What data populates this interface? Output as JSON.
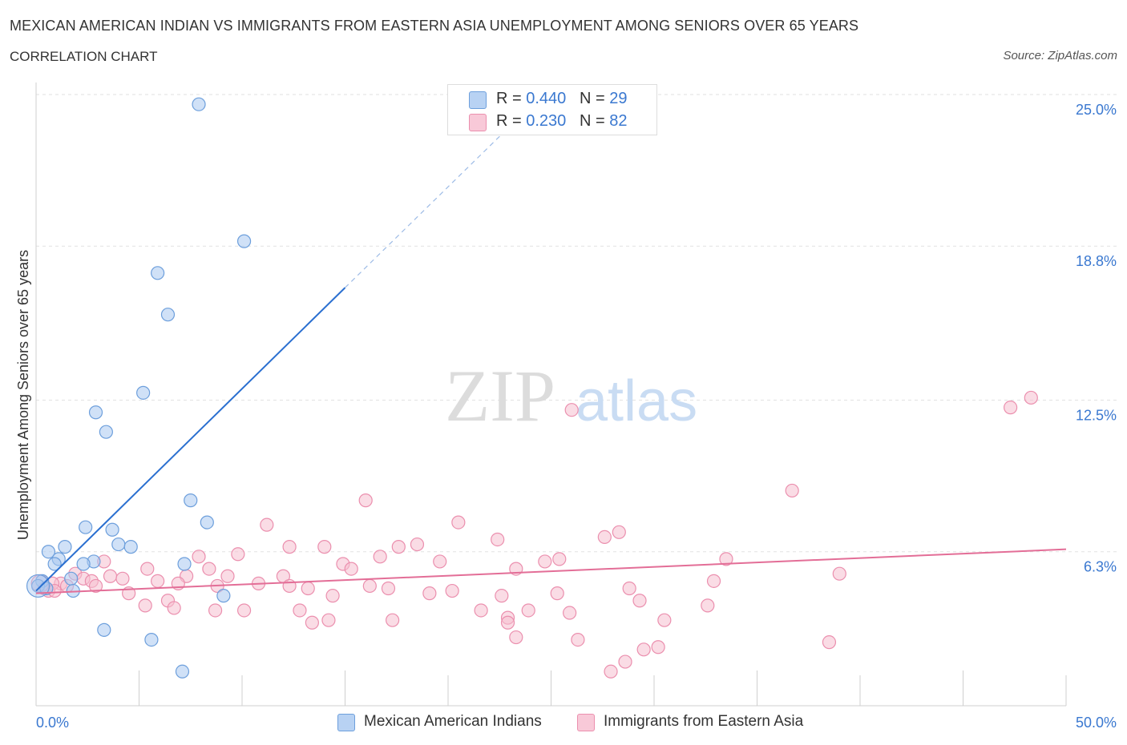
{
  "header": {
    "title": "MEXICAN AMERICAN INDIAN VS IMMIGRANTS FROM EASTERN ASIA UNEMPLOYMENT AMONG SENIORS OVER 65 YEARS",
    "subtitle": "CORRELATION CHART",
    "source": "Source: ZipAtlas.com"
  },
  "watermark": {
    "zip": "ZIP",
    "atlas": "atlas"
  },
  "legend_top": {
    "rows": [
      {
        "r_label": "R =",
        "r_value": "0.440",
        "n_label": "N =",
        "n_value": "29"
      },
      {
        "r_label": "R =",
        "r_value": "0.230",
        "n_label": "N =",
        "n_value": "82"
      }
    ]
  },
  "legend_bottom": {
    "items": [
      {
        "label": "Mexican American Indians"
      },
      {
        "label": "Immigrants from Eastern Asia"
      }
    ]
  },
  "colors": {
    "blue_fill": "#a9c8f0",
    "blue_stroke": "#6d9fdc",
    "blue_line": "#2a6fd0",
    "pink_fill": "#f6bfd0",
    "pink_stroke": "#eb8fae",
    "pink_line": "#e36e97",
    "axis_label": "#3a78d0",
    "grid": "#e2e2e2"
  },
  "chart_data": {
    "type": "scatter",
    "title": "MEXICAN AMERICAN INDIAN VS IMMIGRANTS FROM EASTERN ASIA UNEMPLOYMENT AMONG SENIORS OVER 65 YEARS",
    "xlabel": "",
    "ylabel": "Unemployment Among Seniors over 65 years",
    "xlim": [
      0,
      50
    ],
    "ylim": [
      0,
      25
    ],
    "x_tick_labels": [
      "0.0%",
      "50.0%"
    ],
    "y_ticks": [
      6.3,
      12.5,
      18.8,
      25.0
    ],
    "y_tick_labels": [
      "6.3%",
      "12.5%",
      "18.8%",
      "25.0%"
    ],
    "grid": true,
    "series": [
      {
        "name": "Mexican American Indians",
        "R": 0.44,
        "N": 29,
        "trend": {
          "x": [
            0,
            15
          ],
          "y": [
            4.7,
            17.1
          ],
          "dashed_to": [
            23,
            23.7
          ]
        },
        "points": [
          {
            "x": 7.9,
            "y": 24.6
          },
          {
            "x": 10.1,
            "y": 19.0
          },
          {
            "x": 5.9,
            "y": 17.7
          },
          {
            "x": 6.4,
            "y": 16.0
          },
          {
            "x": 5.2,
            "y": 12.8
          },
          {
            "x": 2.9,
            "y": 12.0
          },
          {
            "x": 3.4,
            "y": 11.2
          },
          {
            "x": 7.5,
            "y": 8.4
          },
          {
            "x": 8.3,
            "y": 7.5
          },
          {
            "x": 2.4,
            "y": 7.3
          },
          {
            "x": 3.7,
            "y": 7.2
          },
          {
            "x": 4.0,
            "y": 6.6
          },
          {
            "x": 4.6,
            "y": 6.5
          },
          {
            "x": 1.4,
            "y": 6.5
          },
          {
            "x": 0.6,
            "y": 6.3
          },
          {
            "x": 1.1,
            "y": 6.0
          },
          {
            "x": 2.8,
            "y": 5.9
          },
          {
            "x": 2.3,
            "y": 5.8
          },
          {
            "x": 0.9,
            "y": 5.8
          },
          {
            "x": 7.2,
            "y": 5.8
          },
          {
            "x": 1.7,
            "y": 5.2
          },
          {
            "x": 0.3,
            "y": 5.1
          },
          {
            "x": 0.1,
            "y": 4.9
          },
          {
            "x": 0.5,
            "y": 4.8
          },
          {
            "x": 1.8,
            "y": 4.7
          },
          {
            "x": 9.1,
            "y": 4.5
          },
          {
            "x": 3.3,
            "y": 3.1
          },
          {
            "x": 5.6,
            "y": 2.7
          },
          {
            "x": 7.1,
            "y": 1.4
          }
        ]
      },
      {
        "name": "Immigrants from Eastern Asia",
        "R": 0.23,
        "N": 82,
        "trend": {
          "x": [
            0,
            50
          ],
          "y": [
            4.6,
            6.4
          ]
        },
        "points": [
          {
            "x": 48.3,
            "y": 12.6
          },
          {
            "x": 47.3,
            "y": 12.2
          },
          {
            "x": 26.0,
            "y": 12.1
          },
          {
            "x": 36.7,
            "y": 8.8
          },
          {
            "x": 16.0,
            "y": 8.4
          },
          {
            "x": 20.5,
            "y": 7.5
          },
          {
            "x": 11.2,
            "y": 7.4
          },
          {
            "x": 28.3,
            "y": 7.1
          },
          {
            "x": 27.6,
            "y": 6.9
          },
          {
            "x": 22.4,
            "y": 6.8
          },
          {
            "x": 18.5,
            "y": 6.6
          },
          {
            "x": 17.6,
            "y": 6.5
          },
          {
            "x": 12.3,
            "y": 6.5
          },
          {
            "x": 14.0,
            "y": 6.5
          },
          {
            "x": 9.8,
            "y": 6.2
          },
          {
            "x": 16.7,
            "y": 6.1
          },
          {
            "x": 7.9,
            "y": 6.1
          },
          {
            "x": 33.5,
            "y": 6.0
          },
          {
            "x": 25.4,
            "y": 6.0
          },
          {
            "x": 24.7,
            "y": 5.9
          },
          {
            "x": 19.6,
            "y": 5.9
          },
          {
            "x": 3.3,
            "y": 5.9
          },
          {
            "x": 14.9,
            "y": 5.8
          },
          {
            "x": 15.3,
            "y": 5.6
          },
          {
            "x": 23.3,
            "y": 5.6
          },
          {
            "x": 5.4,
            "y": 5.6
          },
          {
            "x": 8.4,
            "y": 5.6
          },
          {
            "x": 1.9,
            "y": 5.4
          },
          {
            "x": 3.6,
            "y": 5.3
          },
          {
            "x": 7.3,
            "y": 5.3
          },
          {
            "x": 12.0,
            "y": 5.3
          },
          {
            "x": 39.0,
            "y": 5.4
          },
          {
            "x": 9.3,
            "y": 5.3
          },
          {
            "x": 2.3,
            "y": 5.2
          },
          {
            "x": 4.2,
            "y": 5.2
          },
          {
            "x": 5.9,
            "y": 5.1
          },
          {
            "x": 32.9,
            "y": 5.1
          },
          {
            "x": 2.7,
            "y": 5.1
          },
          {
            "x": 1.2,
            "y": 5.0
          },
          {
            "x": 0.8,
            "y": 5.0
          },
          {
            "x": 10.8,
            "y": 5.0
          },
          {
            "x": 6.9,
            "y": 5.0
          },
          {
            "x": 1.5,
            "y": 4.9
          },
          {
            "x": 16.2,
            "y": 4.9
          },
          {
            "x": 2.9,
            "y": 4.9
          },
          {
            "x": 8.8,
            "y": 4.9
          },
          {
            "x": 12.3,
            "y": 4.9
          },
          {
            "x": 17.1,
            "y": 4.8
          },
          {
            "x": 13.2,
            "y": 4.8
          },
          {
            "x": 0.4,
            "y": 4.8
          },
          {
            "x": 28.8,
            "y": 4.8
          },
          {
            "x": 0.6,
            "y": 4.7
          },
          {
            "x": 20.2,
            "y": 4.7
          },
          {
            "x": 0.9,
            "y": 4.7
          },
          {
            "x": 19.1,
            "y": 4.6
          },
          {
            "x": 25.3,
            "y": 4.6
          },
          {
            "x": 4.5,
            "y": 4.6
          },
          {
            "x": 22.6,
            "y": 4.5
          },
          {
            "x": 14.4,
            "y": 4.5
          },
          {
            "x": 6.4,
            "y": 4.3
          },
          {
            "x": 29.3,
            "y": 4.3
          },
          {
            "x": 5.3,
            "y": 4.1
          },
          {
            "x": 32.6,
            "y": 4.1
          },
          {
            "x": 6.7,
            "y": 4.0
          },
          {
            "x": 10.1,
            "y": 3.9
          },
          {
            "x": 12.8,
            "y": 3.9
          },
          {
            "x": 8.7,
            "y": 3.9
          },
          {
            "x": 21.6,
            "y": 3.9
          },
          {
            "x": 23.9,
            "y": 3.9
          },
          {
            "x": 25.9,
            "y": 3.8
          },
          {
            "x": 22.9,
            "y": 3.6
          },
          {
            "x": 14.2,
            "y": 3.5
          },
          {
            "x": 17.3,
            "y": 3.5
          },
          {
            "x": 30.5,
            "y": 3.5
          },
          {
            "x": 13.4,
            "y": 3.4
          },
          {
            "x": 22.9,
            "y": 3.4
          },
          {
            "x": 23.3,
            "y": 2.8
          },
          {
            "x": 26.3,
            "y": 2.7
          },
          {
            "x": 38.5,
            "y": 2.6
          },
          {
            "x": 30.2,
            "y": 2.4
          },
          {
            "x": 29.5,
            "y": 2.3
          },
          {
            "x": 28.6,
            "y": 1.8
          },
          {
            "x": 27.9,
            "y": 1.4
          }
        ]
      }
    ]
  }
}
